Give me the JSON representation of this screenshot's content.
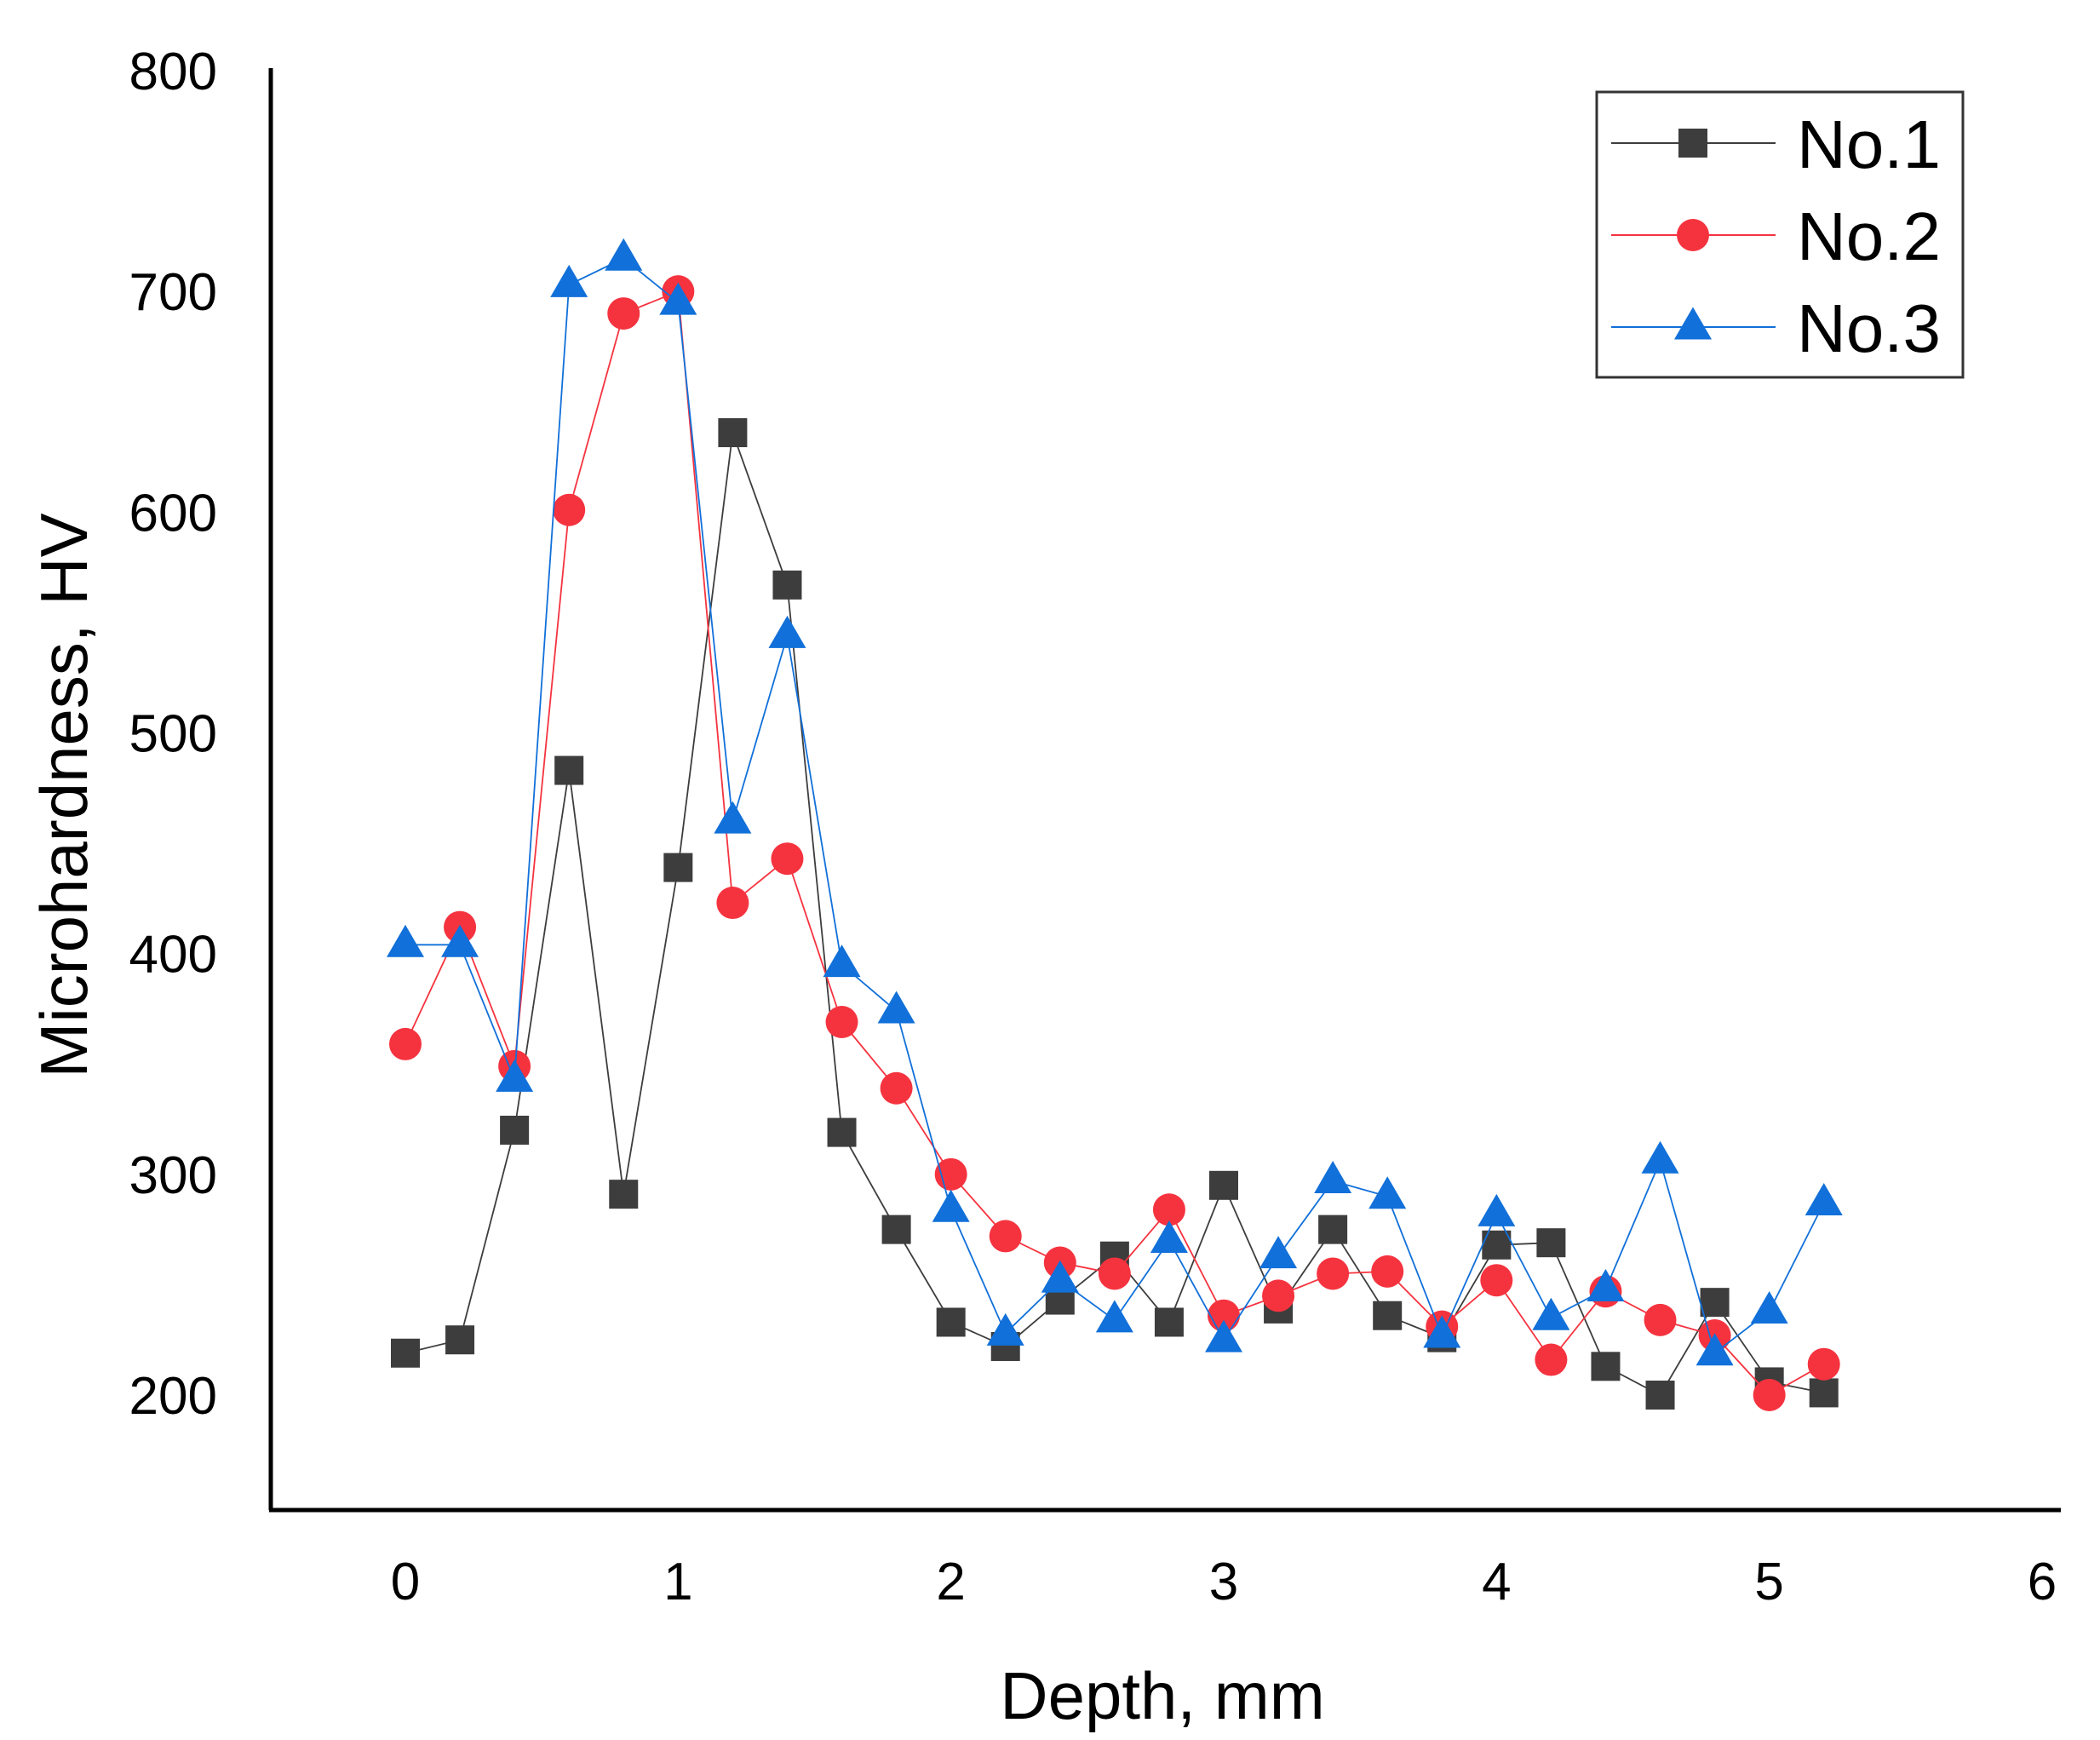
{
  "chart_data": {
    "type": "line",
    "title": "",
    "xlabel": "Depth, mm",
    "ylabel": "Microhardness, HV",
    "xlim": [
      -0.5,
      6
    ],
    "ylim": [
      150,
      800
    ],
    "x_ticks": [
      0,
      1,
      2,
      3,
      4,
      5,
      6
    ],
    "y_ticks": [
      200,
      300,
      400,
      500,
      600,
      700,
      800
    ],
    "grid": false,
    "legend_position": "top-right",
    "x": [
      0,
      0.2,
      0.4,
      0.6,
      0.8,
      1.0,
      1.2,
      1.4,
      1.6,
      1.8,
      2.0,
      2.2,
      2.4,
      2.6,
      2.8,
      3.0,
      3.2,
      3.4,
      3.6,
      3.8,
      4.0,
      4.2,
      4.4,
      4.6,
      4.8,
      5.0,
      5.2
    ],
    "series": [
      {
        "name": "No.1",
        "color": "#3d3d3d",
        "marker": "square",
        "values": [
          219,
          225,
          320,
          483,
          291,
          439,
          636,
          567,
          319,
          275,
          233,
          222,
          243,
          263,
          233,
          295,
          239,
          275,
          236,
          226,
          268,
          269,
          213,
          200,
          242,
          206,
          201
        ]
      },
      {
        "name": "No.2",
        "color": "#f5333f",
        "marker": "circle",
        "values": [
          359,
          412,
          349,
          601,
          690,
          700,
          423,
          443,
          369,
          339,
          300,
          272,
          260,
          255,
          284,
          236,
          245,
          255,
          256,
          231,
          252,
          216,
          247,
          234,
          227,
          200,
          214
        ]
      },
      {
        "name": "No.3",
        "color": "#1170d9",
        "marker": "triangle",
        "values": [
          404,
          404,
          343,
          703,
          715,
          695,
          460,
          544,
          395,
          374,
          284,
          228,
          252,
          234,
          270,
          225,
          263,
          297,
          290,
          227,
          282,
          235,
          248,
          306,
          219,
          238,
          287
        ]
      }
    ]
  }
}
